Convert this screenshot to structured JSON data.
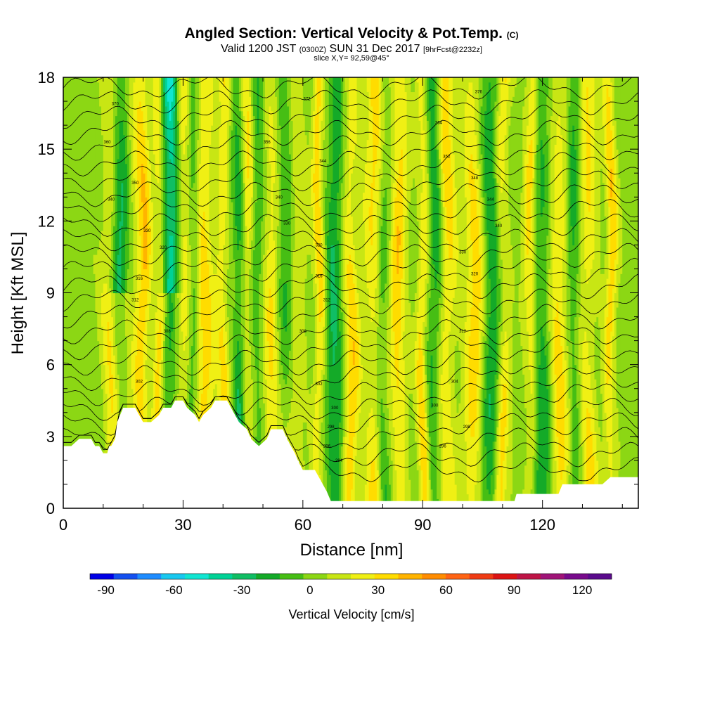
{
  "header": {
    "title_main": "Angled Section: Vertical Velocity & Pot.Temp.",
    "title_mark": "(C)",
    "valid_prefix": "Valid 1200 JST",
    "valid_zulu": "(0300Z)",
    "valid_date": "SUN 31 Dec 2017",
    "valid_fcst": "[9hrFcst@2232z]",
    "slice": "slice X,Y= 92,59@45°"
  },
  "chart_data": {
    "type": "heatmap",
    "xlabel": "Distance [nm]",
    "ylabel": "Height [Kft MSL]",
    "xlim": [
      0,
      144
    ],
    "ylim": [
      0,
      18
    ],
    "x_ticks": [
      "0",
      "30",
      "60",
      "90",
      "120"
    ],
    "x_tick_values": [
      0,
      30,
      60,
      90,
      120
    ],
    "y_ticks": [
      "0",
      "3",
      "6",
      "9",
      "12",
      "15",
      "18"
    ],
    "y_tick_values": [
      0,
      3,
      6,
      9,
      12,
      15,
      18
    ],
    "color_variable": "Vertical Velocity",
    "colorbar": {
      "title": "Vertical Velocity [cm/s]",
      "labels": [
        "-90",
        "-60",
        "-30",
        "0",
        "30",
        "60",
        "90",
        "120"
      ],
      "label_values": [
        -90,
        -60,
        -30,
        0,
        30,
        60,
        90,
        120
      ],
      "range": [
        -97,
        133
      ],
      "colors": [
        "#0000e6",
        "#1450f0",
        "#1e8cff",
        "#18c8f0",
        "#10e6d2",
        "#00d296",
        "#10be64",
        "#14aa28",
        "#46be14",
        "#8cd714",
        "#c8e614",
        "#f0f014",
        "#ffdc00",
        "#ffb400",
        "#ff8c00",
        "#ff6414",
        "#f03c14",
        "#dc1414",
        "#be1446",
        "#a01478",
        "#780a8c",
        "#5a0a8c"
      ]
    },
    "contour_variable": "Pot.Temp.",
    "terrain_kft": [
      [
        0,
        2.6
      ],
      [
        2,
        2.6
      ],
      [
        4,
        2.9
      ],
      [
        7,
        2.9
      ],
      [
        8,
        2.6
      ],
      [
        9,
        2.6
      ],
      [
        10,
        2.3
      ],
      [
        11,
        2.3
      ],
      [
        11.5,
        2.6
      ],
      [
        12,
        2.6
      ],
      [
        13,
        2.9
      ],
      [
        13.5,
        3.6
      ],
      [
        15,
        4.2
      ],
      [
        18,
        4.2
      ],
      [
        19,
        3.9
      ],
      [
        20,
        3.6
      ],
      [
        22,
        3.6
      ],
      [
        24,
        3.9
      ],
      [
        25,
        4.2
      ],
      [
        27,
        4.2
      ],
      [
        28,
        4.5
      ],
      [
        30,
        4.5
      ],
      [
        31,
        4.2
      ],
      [
        33,
        3.9
      ],
      [
        34,
        3.6
      ],
      [
        35,
        3.9
      ],
      [
        37,
        4.2
      ],
      [
        38,
        4.5
      ],
      [
        41,
        4.5
      ],
      [
        42,
        4.2
      ],
      [
        43,
        3.9
      ],
      [
        44,
        3.6
      ],
      [
        46,
        3.3
      ],
      [
        47,
        2.9
      ],
      [
        49,
        2.6
      ],
      [
        51,
        2.9
      ],
      [
        52,
        3.3
      ],
      [
        55,
        3.3
      ],
      [
        56,
        2.9
      ],
      [
        58,
        2.3
      ],
      [
        59,
        1.9
      ],
      [
        60,
        1.6
      ],
      [
        63,
        1.6
      ],
      [
        64,
        1.3
      ],
      [
        65,
        1.0
      ],
      [
        66,
        0.7
      ],
      [
        67,
        0.3
      ],
      [
        70,
        0.3
      ],
      [
        113,
        0.3
      ],
      [
        113.5,
        0.6
      ],
      [
        124,
        0.6
      ],
      [
        125,
        1.0
      ],
      [
        135,
        1.0
      ],
      [
        137,
        1.3
      ],
      [
        144,
        1.3
      ]
    ],
    "updraft_columns_x": [
      12,
      16,
      20,
      24,
      30,
      35,
      40,
      46,
      52,
      58,
      64,
      72,
      78,
      84,
      90,
      96,
      103,
      110,
      117,
      124,
      131,
      137
    ],
    "downdraft_columns_x": [
      14.5,
      27,
      32.5,
      44,
      49,
      56,
      68,
      80,
      93,
      107,
      120,
      128
    ],
    "contour_labels": [
      {
        "text": "370",
        "x": 13,
        "y": 16.9
      },
      {
        "text": "360",
        "x": 11,
        "y": 15.3
      },
      {
        "text": "350",
        "x": 18,
        "y": 13.6
      },
      {
        "text": "340",
        "x": 12,
        "y": 12.9
      },
      {
        "text": "330",
        "x": 21,
        "y": 11.6
      },
      {
        "text": "320",
        "x": 25,
        "y": 10.9
      },
      {
        "text": "316",
        "x": 19,
        "y": 9.6
      },
      {
        "text": "312",
        "x": 18,
        "y": 8.7
      },
      {
        "text": "308",
        "x": 26,
        "y": 7.4
      },
      {
        "text": "302",
        "x": 19,
        "y": 5.3
      },
      {
        "text": "372",
        "x": 61,
        "y": 17.1
      },
      {
        "text": "356",
        "x": 51,
        "y": 15.3
      },
      {
        "text": "344",
        "x": 65,
        "y": 14.5
      },
      {
        "text": "340",
        "x": 54,
        "y": 13.0
      },
      {
        "text": "330",
        "x": 56,
        "y": 11.9
      },
      {
        "text": "320",
        "x": 64,
        "y": 11.0
      },
      {
        "text": "316",
        "x": 64,
        "y": 9.7
      },
      {
        "text": "312",
        "x": 66,
        "y": 8.7
      },
      {
        "text": "308",
        "x": 60,
        "y": 7.4
      },
      {
        "text": "302",
        "x": 64,
        "y": 5.2
      },
      {
        "text": "300",
        "x": 68,
        "y": 4.2
      },
      {
        "text": "298",
        "x": 67,
        "y": 3.4
      },
      {
        "text": "296",
        "x": 66,
        "y": 2.6
      },
      {
        "text": "294",
        "x": 69,
        "y": 2.0
      },
      {
        "text": "376",
        "x": 104,
        "y": 17.4
      },
      {
        "text": "364",
        "x": 94,
        "y": 16.1
      },
      {
        "text": "352",
        "x": 96,
        "y": 14.7
      },
      {
        "text": "348",
        "x": 103,
        "y": 13.8
      },
      {
        "text": "344",
        "x": 107,
        "y": 12.9
      },
      {
        "text": "340",
        "x": 109,
        "y": 11.8
      },
      {
        "text": "330",
        "x": 100,
        "y": 10.7
      },
      {
        "text": "320",
        "x": 103,
        "y": 9.8
      },
      {
        "text": "312",
        "x": 100,
        "y": 7.4
      },
      {
        "text": "304",
        "x": 98,
        "y": 5.3
      },
      {
        "text": "300",
        "x": 93,
        "y": 4.3
      },
      {
        "text": "298",
        "x": 101,
        "y": 3.4
      },
      {
        "text": "296",
        "x": 95,
        "y": 2.6
      }
    ]
  }
}
